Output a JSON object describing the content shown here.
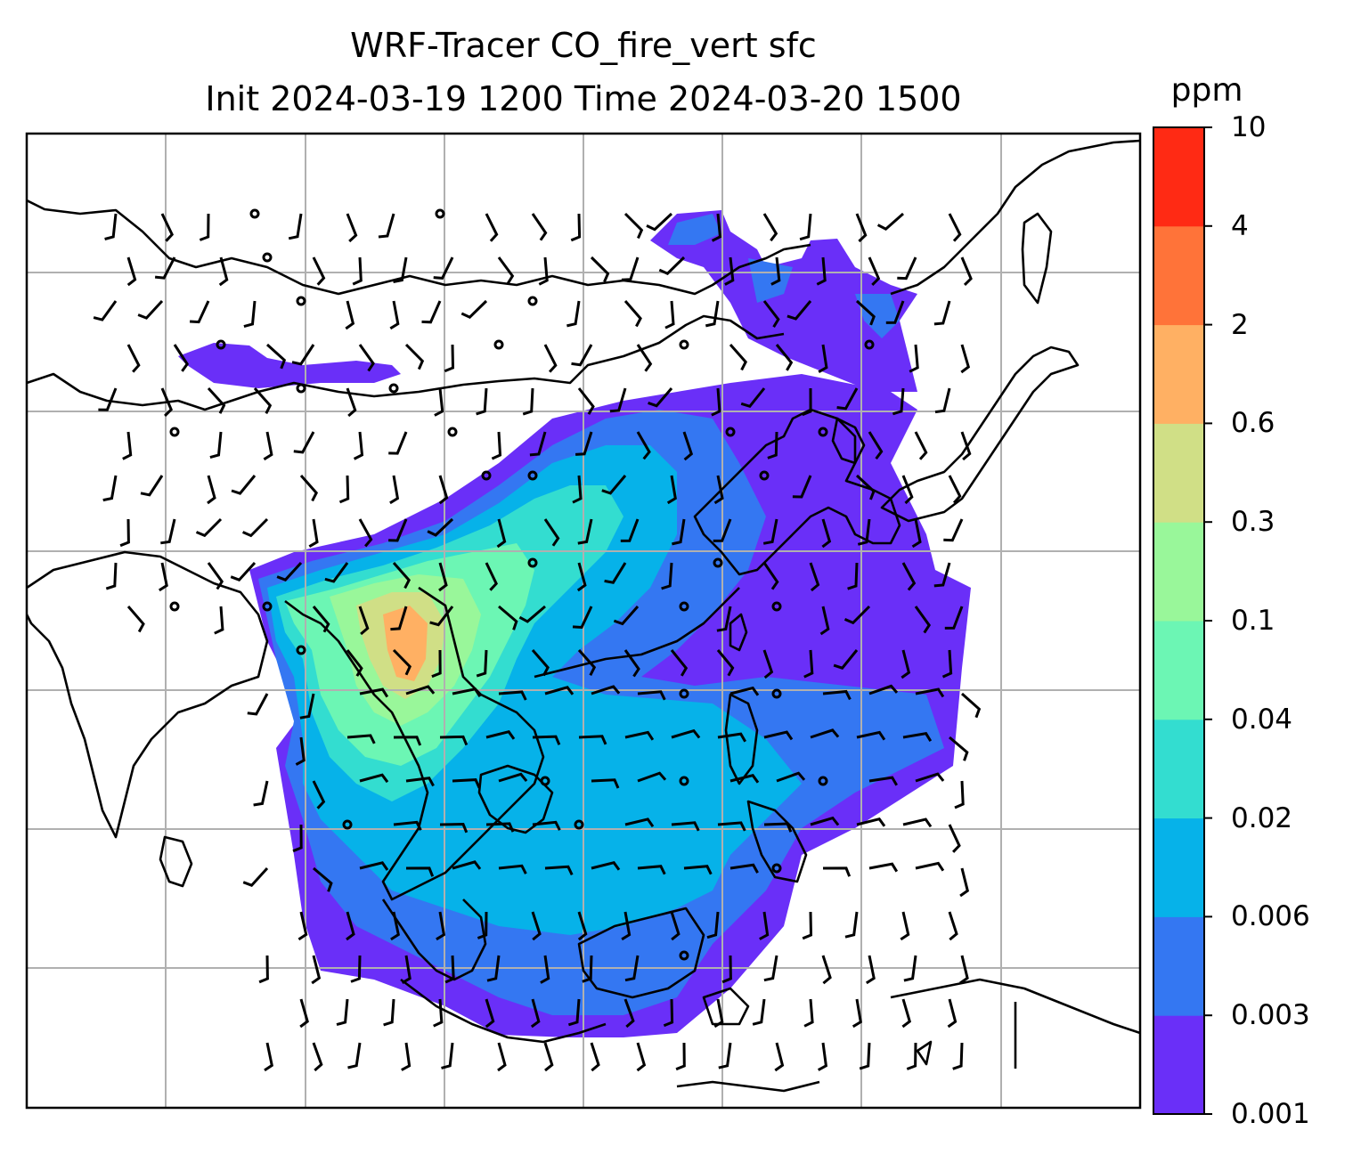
{
  "title": {
    "line1": "WRF-Tracer CO_fire_vert sfc",
    "line2": "Init 2024-03-19 1200 Time 2024-03-20 1500"
  },
  "colorbar": {
    "unit": "ppm",
    "levels": [
      "0.001",
      "0.003",
      "0.006",
      "0.02",
      "0.04",
      "0.1",
      "0.3",
      "0.6",
      "2",
      "4",
      "10"
    ],
    "colors": [
      "#6a2ff8",
      "#3477f2",
      "#06b2e9",
      "#33ddd0",
      "#6cf6b4",
      "#99f79a",
      "#d0df86",
      "#ffb063",
      "#ff7339",
      "#ff2a14"
    ]
  },
  "map": {
    "region": "South and Southeast Asia",
    "gridlines": true,
    "coastline_color": "#000000",
    "gridline_color": "#b0b0b0",
    "wind_barb_color": "#000000"
  }
}
